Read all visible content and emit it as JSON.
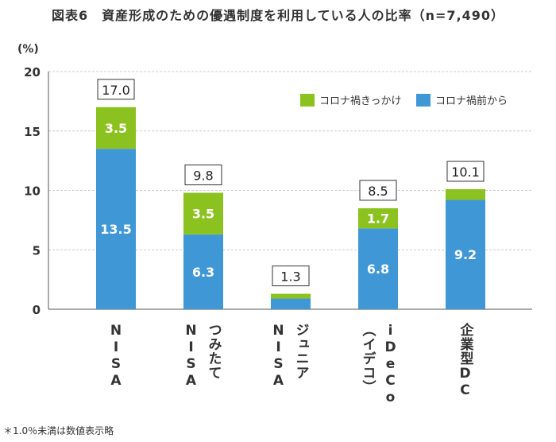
{
  "title": "図表6　資産形成のための優遇制度を利用している人の比率（n=7,490）",
  "note": "＊1.0％未満は数値表示略",
  "chart_data": {
    "type": "bar",
    "stacked": true,
    "ylabel": "(%)",
    "ylim": [
      0,
      20
    ],
    "yticks": [
      0,
      5,
      10,
      15,
      20
    ],
    "grid": true,
    "legend_position": "top-right",
    "categories": [
      {
        "lines": [
          "NISA"
        ]
      },
      {
        "lines": [
          "つみたて",
          "NISA"
        ]
      },
      {
        "lines": [
          "ジュニア",
          "NISA"
        ]
      },
      {
        "lines": [
          "iDeCo",
          "（イデコ）"
        ]
      },
      {
        "lines": [
          "企業型DC"
        ]
      }
    ],
    "series": [
      {
        "name": "コロナ禍前から",
        "color": "#3f97d6",
        "values": [
          13.5,
          6.3,
          0.9,
          6.8,
          9.2
        ],
        "labels": [
          "13.5",
          "6.3",
          "",
          "6.8",
          "9.2"
        ]
      },
      {
        "name": "コロナ禍きっかけ",
        "color": "#8cc21f",
        "values": [
          3.5,
          3.5,
          0.4,
          1.7,
          0.9
        ],
        "labels": [
          "3.5",
          "3.5",
          "",
          "1.7",
          ""
        ]
      }
    ],
    "totals": [
      "17.0",
      "9.8",
      "1.3",
      "8.5",
      "10.1"
    ]
  }
}
